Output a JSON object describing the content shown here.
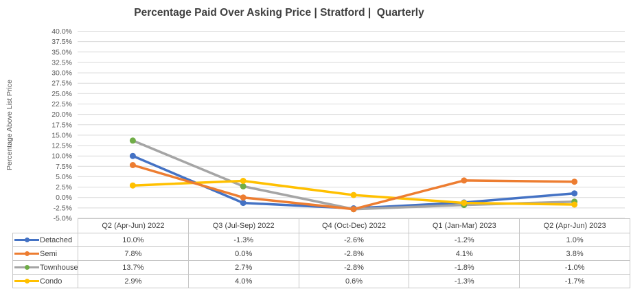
{
  "chart_data": {
    "type": "line",
    "title": "Percentage Paid Over Asking Price | Stratford |  Quarterly",
    "xlabel": "",
    "ylabel": "Percentage Above List Price",
    "categories": [
      "Q2 (Apr-Jun) 2022",
      "Q3 (Jul-Sep) 2022",
      "Q4 (Oct-Dec) 2022",
      "Q1 (Jan-Mar) 2023",
      "Q2 (Apr-Jun) 2023"
    ],
    "series": [
      {
        "name": "Detached",
        "line_color": "#4472C4",
        "marker_color": "#4472C4",
        "values": [
          10.0,
          -1.3,
          -2.6,
          -1.2,
          1.0
        ]
      },
      {
        "name": "Semi",
        "line_color": "#ED7D31",
        "marker_color": "#ED7D31",
        "values": [
          7.8,
          0.0,
          -2.8,
          4.1,
          3.8
        ]
      },
      {
        "name": "Townhouse",
        "line_color": "#A5A5A5",
        "marker_color": "#70AD47",
        "values": [
          13.7,
          2.7,
          -2.8,
          -1.8,
          -1.0
        ]
      },
      {
        "name": "Condo",
        "line_color": "#FFC000",
        "marker_color": "#FFC000",
        "values": [
          2.9,
          4.0,
          0.6,
          -1.3,
          -1.7
        ]
      }
    ],
    "ylim": [
      -5.0,
      40.0
    ],
    "ytick_step": 2.5,
    "value_format": "one_decimal_percent",
    "grid": true,
    "gridline_color": "#D9D9D9",
    "legend_position": "table-left",
    "z_order": [
      0,
      2,
      3,
      1
    ]
  }
}
